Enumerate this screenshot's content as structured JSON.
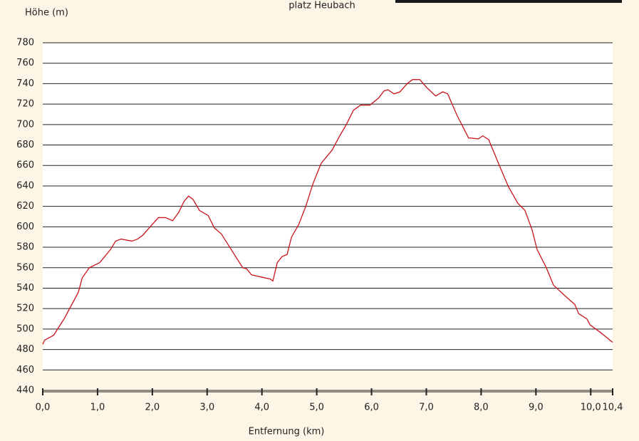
{
  "header": {
    "caption": "platz Heubach"
  },
  "chart_data": {
    "type": "line",
    "y_label": "Höhe (m)",
    "x_label": "Entfernung (km)",
    "xlim": [
      0,
      10.4
    ],
    "ylim": [
      440,
      780
    ],
    "xticks": [
      {
        "value": 0,
        "label": "0,0"
      },
      {
        "value": 1,
        "label": "1,0"
      },
      {
        "value": 2,
        "label": "2,0"
      },
      {
        "value": 3,
        "label": "3,0"
      },
      {
        "value": 4,
        "label": "4,0"
      },
      {
        "value": 5,
        "label": "5,0"
      },
      {
        "value": 6,
        "label": "6,0"
      },
      {
        "value": 7,
        "label": "7,0"
      },
      {
        "value": 8,
        "label": "8,0"
      },
      {
        "value": 9,
        "label": "9,0"
      },
      {
        "value": 10,
        "label": "10,0"
      },
      {
        "value": 10.4,
        "label": "10,4"
      }
    ],
    "yticks": [
      440,
      460,
      480,
      500,
      520,
      540,
      560,
      580,
      600,
      620,
      640,
      660,
      680,
      700,
      720,
      740,
      760,
      780
    ],
    "grid": true,
    "series": [
      {
        "color": "#c8161d",
        "x": [
          0,
          0.03,
          0.2,
          0.39,
          0.65,
          0.72,
          0.85,
          1.04,
          1.24,
          1.33,
          1.43,
          1.63,
          1.73,
          1.83,
          1.96,
          2.11,
          2.24,
          2.37,
          2.48,
          2.58,
          2.66,
          2.74,
          2.86,
          3.02,
          3.13,
          3.26,
          3.46,
          3.65,
          3.72,
          3.81,
          3.98,
          4.15,
          4.2,
          4.28,
          4.37,
          4.46,
          4.54,
          4.67,
          4.8,
          4.93,
          5.08,
          5.28,
          5.42,
          5.54,
          5.67,
          5.8,
          5.97,
          6.13,
          6.23,
          6.3,
          6.41,
          6.52,
          6.65,
          6.75,
          6.88,
          7.01,
          7.17,
          7.3,
          7.39,
          7.56,
          7.77,
          7.95,
          8.03,
          8.14,
          8.34,
          8.5,
          8.67,
          8.8,
          8.93,
          9.02,
          9.19,
          9.32,
          9.52,
          9.71,
          9.78,
          9.93,
          9.99,
          10.17,
          10.4
        ],
        "values": [
          485,
          489,
          494,
          510,
          536,
          550,
          560,
          565,
          578,
          586,
          588,
          586,
          588,
          592,
          600,
          609,
          609,
          606,
          614,
          625,
          630,
          627,
          616,
          611,
          599,
          593,
          576,
          560,
          559,
          553,
          551,
          549,
          547,
          565,
          571,
          573,
          590,
          602,
          620,
          642,
          662,
          675,
          689,
          700,
          714,
          719,
          719,
          726,
          733,
          734,
          730,
          732,
          740,
          744,
          744,
          736,
          728,
          732,
          730,
          709,
          687,
          686,
          689,
          685,
          659,
          639,
          623,
          616,
          597,
          578,
          560,
          543,
          533,
          524,
          515,
          510,
          504,
          497,
          487
        ]
      }
    ]
  }
}
